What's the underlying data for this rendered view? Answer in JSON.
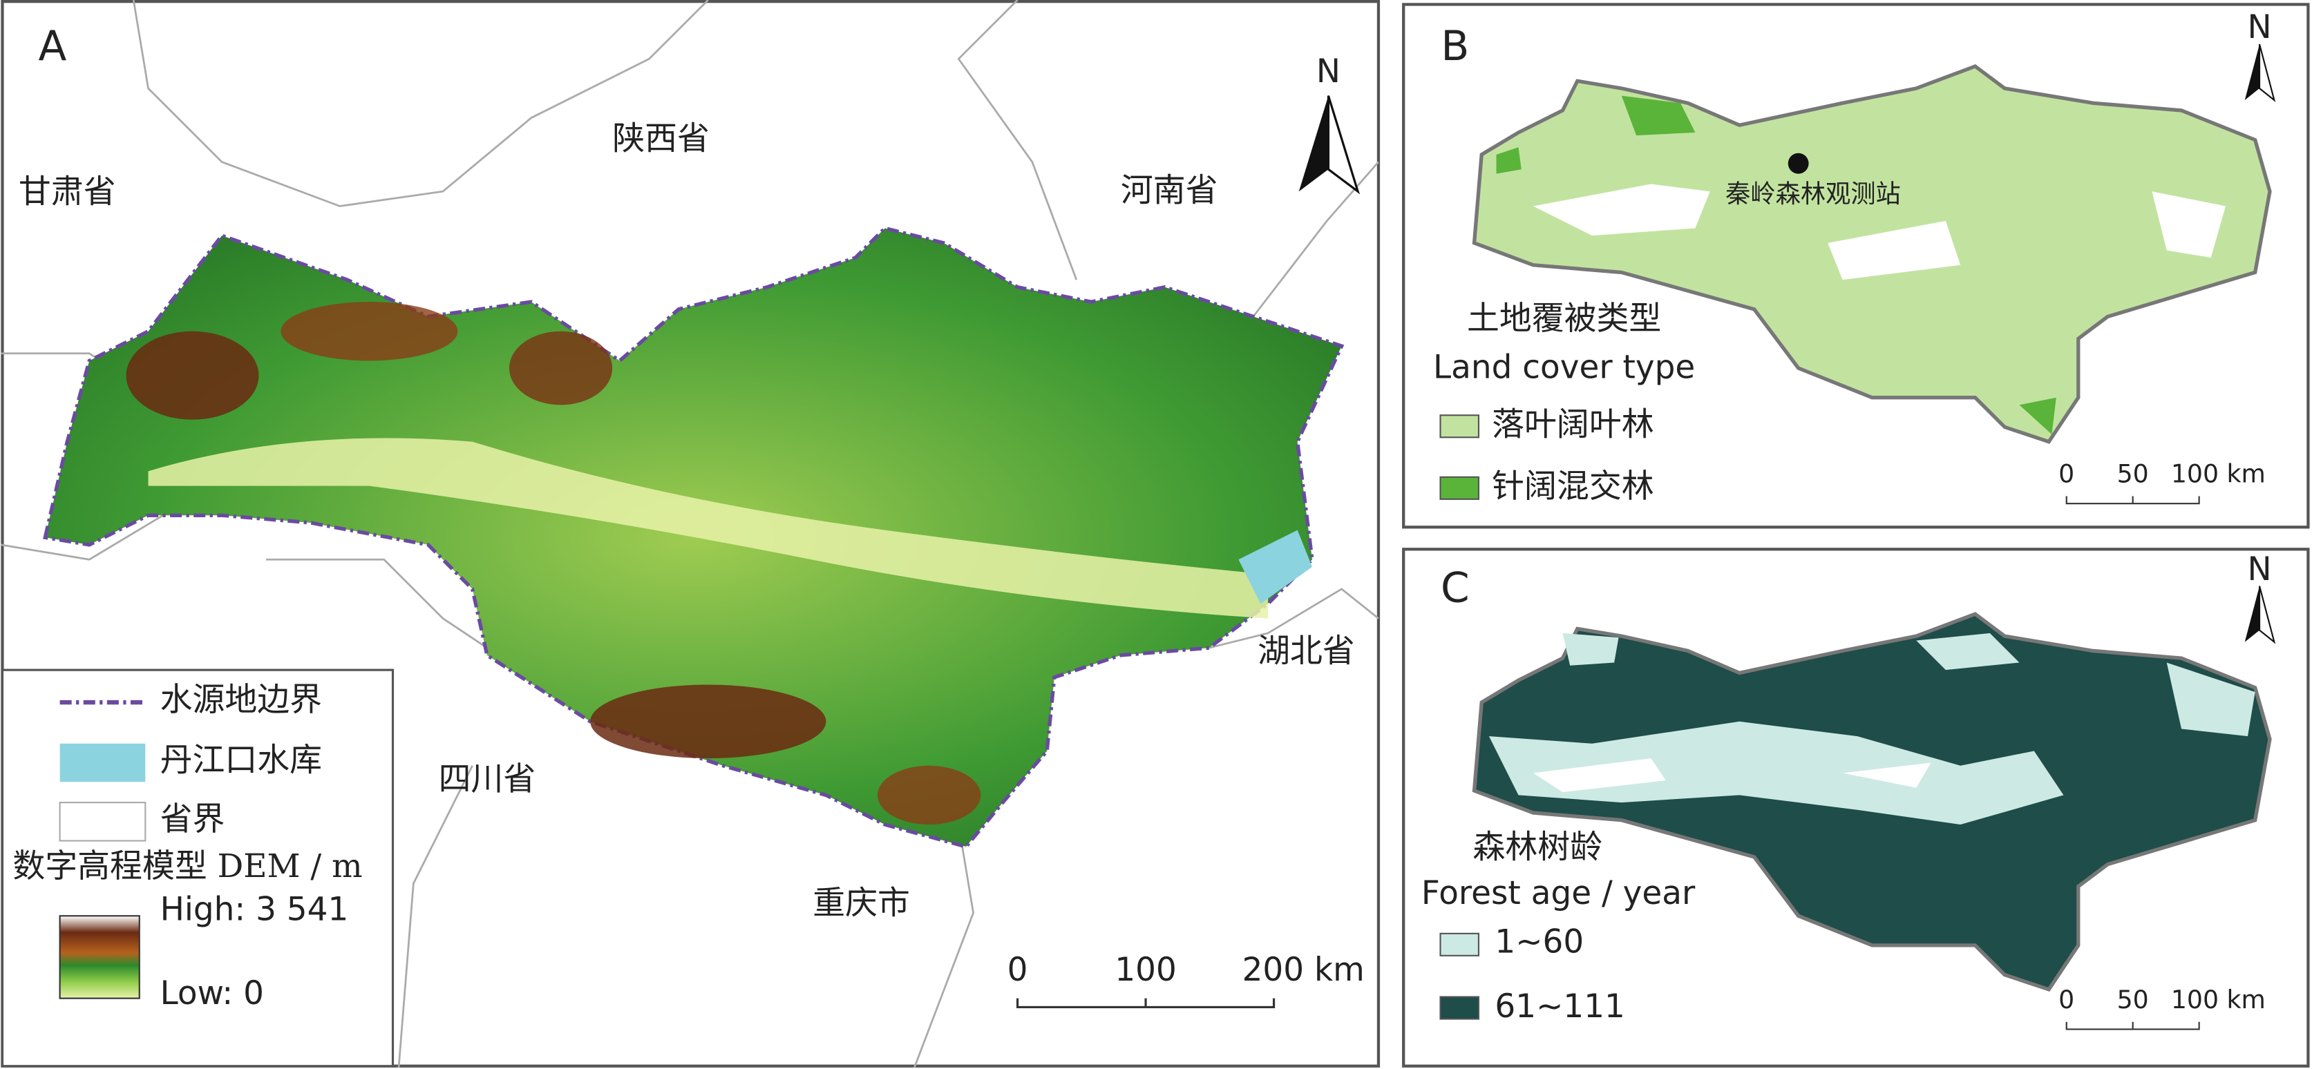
{
  "panels": [
    {
      "label": "A",
      "provinces": [
        "陕西省",
        "甘肃省",
        "河南省",
        "湖北省",
        "四川省",
        "重庆市"
      ],
      "north": "N",
      "scale": [
        "0",
        "100",
        "200 km"
      ],
      "legend": {
        "items": [
          "水源地边界",
          "丹江口水库",
          "省界"
        ],
        "dem_title": "数字高程模型 DEM / m",
        "high": "High: 3 541",
        "low": "Low: 0"
      }
    },
    {
      "label": "B",
      "station": "秦岭森林观测站",
      "north": "N",
      "legend_title": [
        "土地覆被类型",
        "Land cover type"
      ],
      "items": [
        "落叶阔叶林",
        "针阔混交林"
      ],
      "scale": [
        "0",
        "50",
        "100 km"
      ]
    },
    {
      "label": "C",
      "north": "N",
      "legend_title": [
        "森林树龄",
        "Forest age / year"
      ],
      "items": [
        "1~60",
        "61~111"
      ],
      "scale": [
        "0",
        "50",
        "100 km"
      ]
    }
  ]
}
